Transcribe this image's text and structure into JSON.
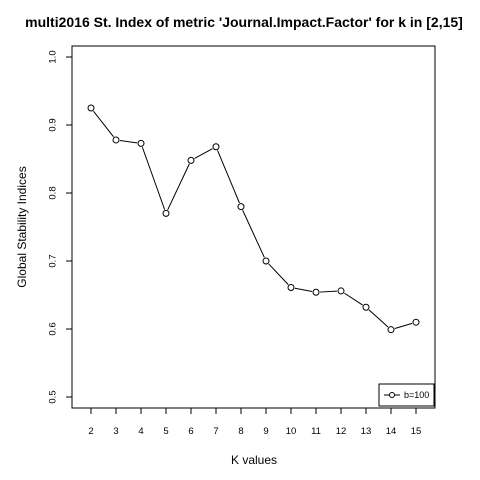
{
  "chart_data": {
    "type": "line",
    "title": "multi2016 St. Index of metric 'Journal.Impact.Factor' for k in [2,15]",
    "xlabel": "K values",
    "ylabel": "Global Stability Indices",
    "x": [
      2,
      3,
      4,
      5,
      6,
      7,
      8,
      9,
      10,
      11,
      12,
      13,
      14,
      15
    ],
    "xlim": [
      2,
      15
    ],
    "ylim": [
      0.5,
      1.0
    ],
    "yticks": [
      0.5,
      0.6,
      0.7,
      0.8,
      0.9,
      1.0
    ],
    "ytick_labels": [
      "0.5",
      "0.6",
      "0.7",
      "0.8",
      "0.9",
      "1.0"
    ],
    "series": [
      {
        "name": "b=100",
        "values": [
          0.925,
          0.878,
          0.873,
          0.77,
          0.848,
          0.868,
          0.78,
          0.7,
          0.661,
          0.654,
          0.656,
          0.632,
          0.599,
          0.61
        ],
        "marker": "open-circle",
        "color": "#000000"
      }
    ],
    "legend_position": "bottom-right",
    "grid": false
  }
}
